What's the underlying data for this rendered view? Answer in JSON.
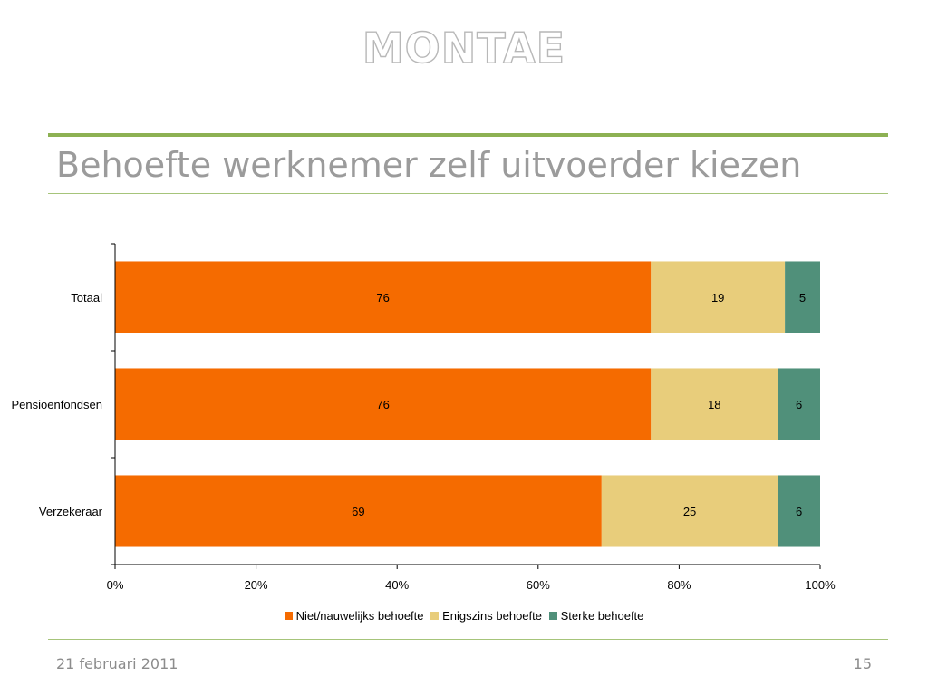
{
  "header": {
    "logo_text": "MONTAE",
    "title": "Behoefte werknemer zelf uitvoerder kiezen"
  },
  "footer": {
    "date": "21 februari 2011",
    "page_number": "15"
  },
  "chart_data": {
    "type": "bar",
    "orientation": "horizontal",
    "stacked": "percent",
    "categories": [
      "Totaal",
      "Pensioenfondsen",
      "Verzekeraar"
    ],
    "series": [
      {
        "name": "Niet/nauwelijks behoefte",
        "values": [
          76,
          76,
          69
        ],
        "color": "#f56b00"
      },
      {
        "name": "Enigszins behoefte",
        "values": [
          19,
          18,
          25
        ],
        "color": "#e8cd7b"
      },
      {
        "name": "Sterke behoefte",
        "values": [
          5,
          6,
          6
        ],
        "color": "#50907a"
      }
    ],
    "x_ticks": [
      "0%",
      "20%",
      "40%",
      "60%",
      "80%",
      "100%"
    ],
    "xlim": [
      0,
      100
    ],
    "grid": false,
    "legend_position": "bottom"
  }
}
